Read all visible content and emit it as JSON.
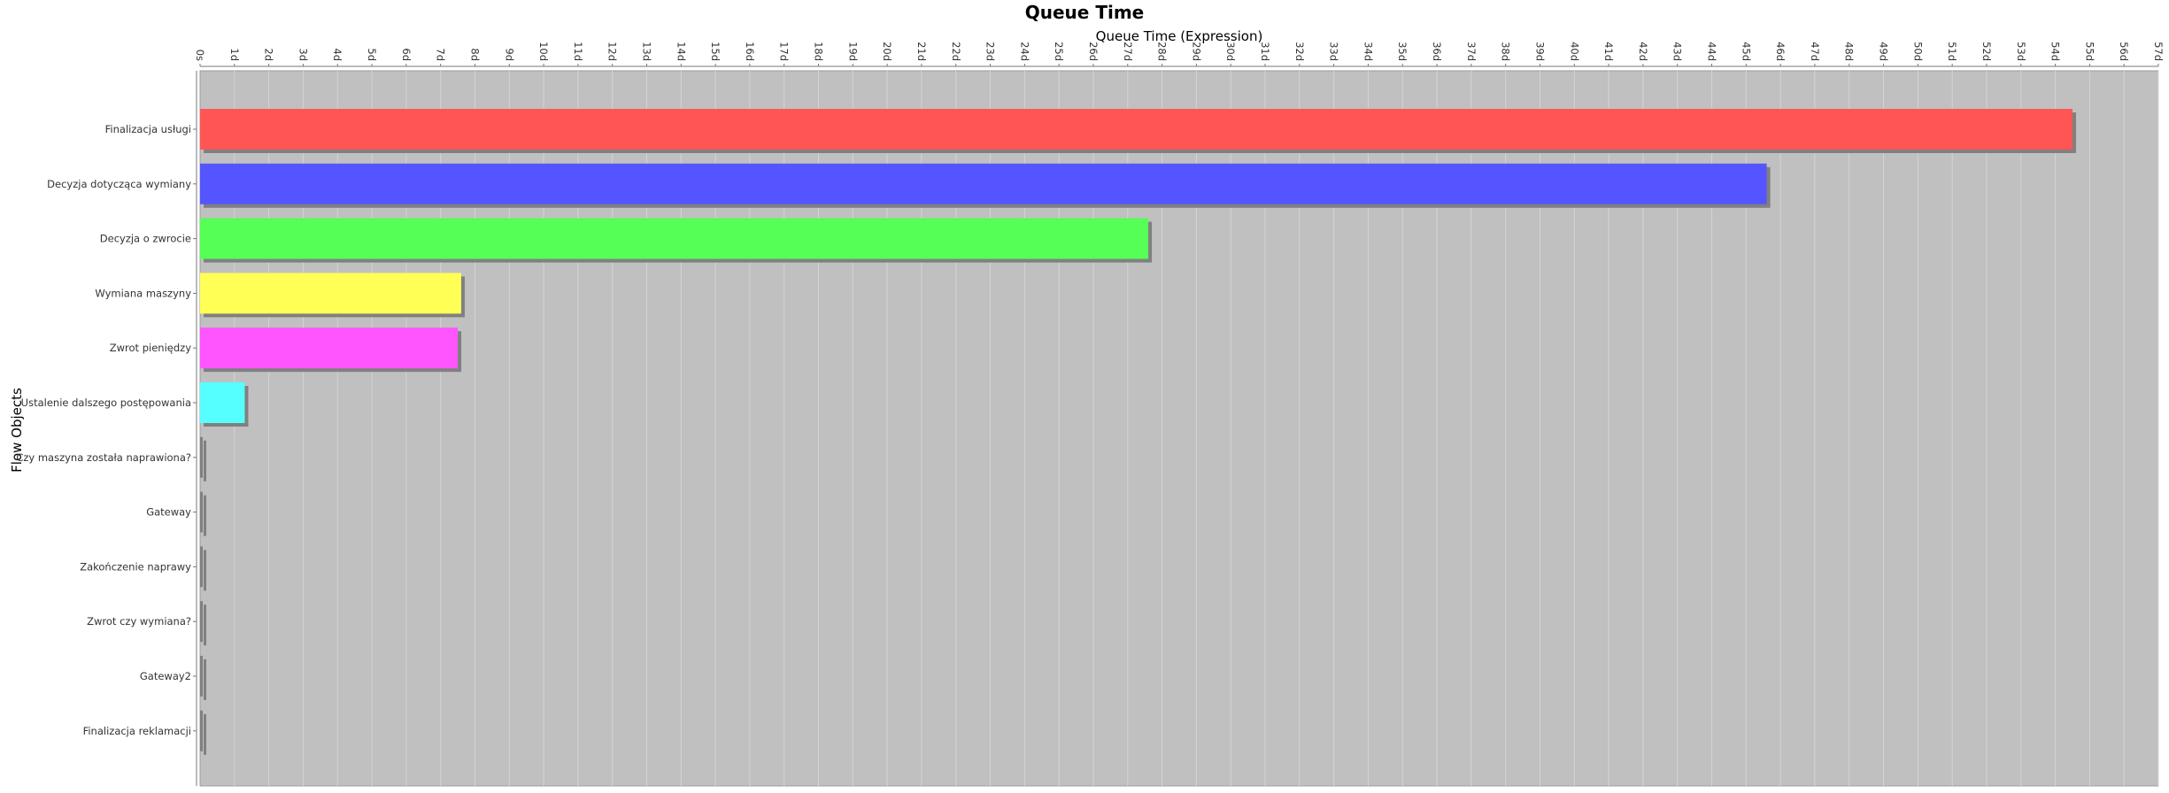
{
  "chart_data": {
    "type": "bar",
    "orientation": "horizontal",
    "title": "Queue Time",
    "xlabel": "Queue Time (Expression)",
    "ylabel": "Flow Objects",
    "xlim": [
      0,
      57
    ],
    "x_tick_labels": [
      "0s",
      "1d",
      "2d",
      "3d",
      "4d",
      "5d",
      "6d",
      "7d",
      "8d",
      "9d",
      "10d",
      "11d",
      "12d",
      "13d",
      "14d",
      "15d",
      "16d",
      "17d",
      "18d",
      "19d",
      "20d",
      "21d",
      "22d",
      "23d",
      "24d",
      "25d",
      "26d",
      "27d",
      "28d",
      "29d",
      "30d",
      "31d",
      "32d",
      "33d",
      "34d",
      "35d",
      "36d",
      "37d",
      "38d",
      "39d",
      "40d",
      "41d",
      "42d",
      "43d",
      "44d",
      "45d",
      "46d",
      "47d",
      "48d",
      "49d",
      "50d",
      "51d",
      "52d",
      "53d",
      "54d",
      "55d",
      "56d",
      "57d"
    ],
    "categories": [
      "Finalizacja usługi",
      "Decyzja dotycząca wymiany",
      "Decyzja o zwrocie",
      "Wymiana maszyny",
      "Zwrot pieniędzy",
      "Ustalenie dalszego postępowania",
      "Czy maszyna została naprawiona?",
      "Gateway",
      "Zakończenie naprawy",
      "Zwrot czy wymiana?",
      "Gateway2",
      "Finalizacja reklamacji"
    ],
    "values": [
      54.5,
      45.6,
      27.6,
      7.6,
      7.5,
      1.3,
      0.05,
      0.05,
      0.05,
      0.05,
      0.05,
      0.05
    ],
    "colors": [
      "#ff5555",
      "#5555ff",
      "#55ff55",
      "#ffff55",
      "#ff55ff",
      "#55ffff",
      "#808080",
      "#808080",
      "#808080",
      "#808080",
      "#808080",
      "#808080"
    ],
    "plot_background": "#c0c0c0",
    "grid": true
  }
}
